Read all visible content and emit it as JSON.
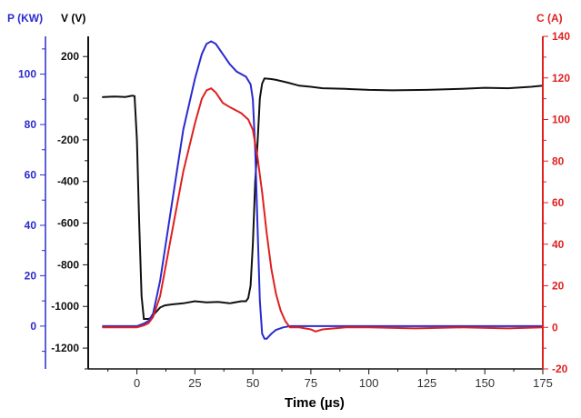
{
  "chart_data": {
    "type": "line",
    "xlabel": "Time (µs)",
    "xlim": [
      -21,
      175
    ],
    "xticks": [
      0,
      25,
      50,
      75,
      100,
      125,
      150,
      175
    ],
    "axes": {
      "P": {
        "label": "P (KW)",
        "color": "#2b2bd0",
        "lim": [
          -17,
          115
        ],
        "ticks": [
          0,
          20,
          40,
          60,
          80,
          100
        ]
      },
      "V": {
        "label": "V (V)",
        "color": "#111111",
        "lim": [
          -1300,
          297
        ],
        "ticks": [
          -1200,
          -1000,
          -800,
          -600,
          -400,
          -200,
          0,
          200
        ]
      },
      "C": {
        "label": "C (A)",
        "color": "#e02020",
        "lim": [
          -20,
          140
        ],
        "ticks": [
          -20,
          0,
          20,
          40,
          60,
          80,
          100,
          120,
          140
        ]
      }
    },
    "series": [
      {
        "name": "V",
        "axis": "V",
        "color": "#111111",
        "x": [
          -15,
          -10,
          -5,
          -2,
          -1,
          0,
          1,
          2,
          3,
          5,
          6,
          8,
          10,
          12,
          15,
          20,
          25,
          30,
          35,
          40,
          45,
          47,
          48,
          49,
          50,
          51,
          52,
          53,
          54,
          55,
          58,
          60,
          65,
          70,
          75,
          80,
          90,
          100,
          110,
          125,
          140,
          150,
          160,
          170,
          175
        ],
        "y": [
          5,
          8,
          6,
          12,
          10,
          -200,
          -600,
          -950,
          -1060,
          -1060,
          -1055,
          -1030,
          -1005,
          -995,
          -990,
          -985,
          -975,
          -980,
          -978,
          -985,
          -975,
          -975,
          -960,
          -900,
          -700,
          -400,
          -220,
          0,
          70,
          95,
          92,
          88,
          75,
          60,
          55,
          48,
          45,
          40,
          38,
          40,
          45,
          50,
          48,
          55,
          60
        ]
      },
      {
        "name": "P",
        "axis": "P",
        "color": "#2b2bd0",
        "x": [
          -15,
          0,
          3,
          5,
          7,
          10,
          15,
          20,
          25,
          28,
          30,
          32,
          34,
          37,
          40,
          43,
          47,
          49,
          50,
          51,
          52,
          53,
          54,
          55,
          56,
          58,
          60,
          63,
          66,
          70,
          100,
          175
        ],
        "y": [
          0,
          0,
          1,
          2,
          5,
          18,
          48,
          78,
          98,
          108,
          112,
          113,
          112,
          108,
          104,
          101,
          99,
          96,
          90,
          70,
          40,
          10,
          -3,
          -5,
          -5,
          -3,
          -1.5,
          -0.5,
          0,
          0,
          0,
          0
        ]
      },
      {
        "name": "C",
        "axis": "C",
        "color": "#e02020",
        "x": [
          -15,
          -5,
          0,
          3,
          5,
          7,
          10,
          15,
          20,
          25,
          28,
          30,
          32,
          34,
          37,
          40,
          45,
          48,
          50,
          52,
          54,
          56,
          58,
          60,
          62,
          64,
          66,
          70,
          75,
          77,
          80,
          90,
          100,
          120,
          140,
          160,
          175
        ],
        "y": [
          0,
          0,
          0,
          1,
          2,
          5,
          15,
          45,
          75,
          98,
          110,
          114,
          115,
          113,
          108,
          106,
          103,
          100,
          95,
          82,
          65,
          45,
          28,
          16,
          8,
          3,
          0,
          0,
          -1,
          -2,
          -1,
          0,
          0,
          -0.5,
          0,
          -0.5,
          0
        ]
      }
    ]
  }
}
